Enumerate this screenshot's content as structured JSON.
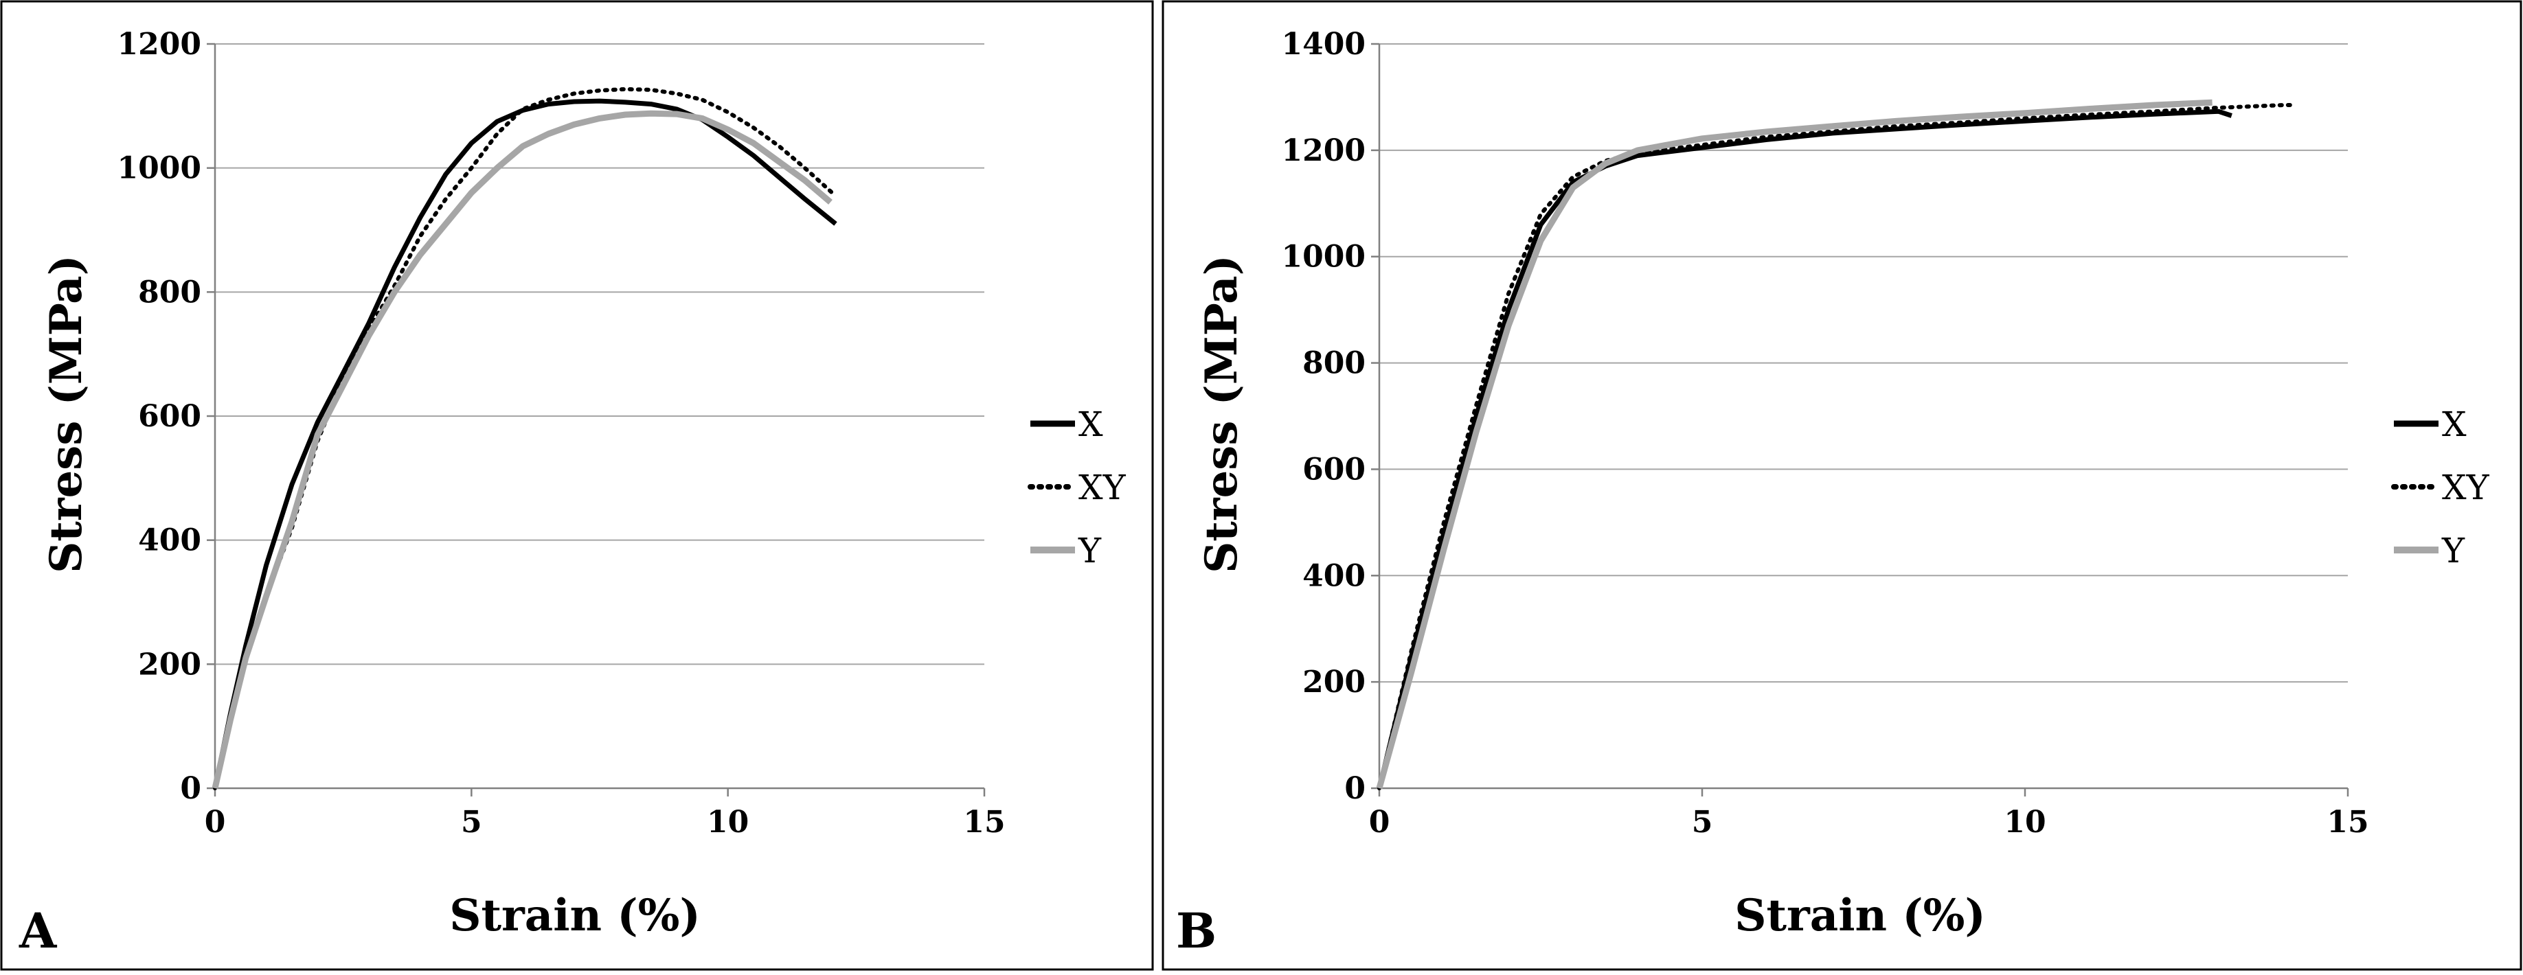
{
  "chart_data": [
    {
      "type": "line",
      "panel_label": "A",
      "title": "",
      "xlabel": "Strain (%)",
      "ylabel": "Stress (MPa)",
      "xlim": [
        0,
        15
      ],
      "ylim": [
        0,
        1200
      ],
      "xticks": [
        0,
        5,
        10,
        15
      ],
      "yticks": [
        0,
        200,
        400,
        600,
        800,
        1000,
        1200
      ],
      "grid": "horizontal",
      "legend_position": "right",
      "series": [
        {
          "name": "X",
          "style": "solid",
          "color": "#000000",
          "x": [
            0,
            0.3,
            0.6,
            1.0,
            1.5,
            2.0,
            2.5,
            3.0,
            3.5,
            4.0,
            4.5,
            5.0,
            5.5,
            6.0,
            6.5,
            7.0,
            7.5,
            8.0,
            8.5,
            9.0,
            9.5,
            10.0,
            10.5,
            11.0,
            11.5,
            12.1
          ],
          "y": [
            0,
            120,
            230,
            360,
            490,
            590,
            670,
            750,
            840,
            920,
            990,
            1040,
            1075,
            1093,
            1103,
            1107,
            1108,
            1106,
            1103,
            1095,
            1078,
            1050,
            1020,
            985,
            950,
            910
          ]
        },
        {
          "name": "XY",
          "style": "dotted",
          "color": "#000000",
          "x": [
            0,
            0.3,
            0.6,
            1.0,
            1.5,
            2.0,
            2.5,
            3.0,
            3.5,
            4.0,
            4.5,
            5.0,
            5.5,
            6.0,
            6.5,
            7.0,
            7.5,
            8.0,
            8.5,
            9.0,
            9.5,
            10.0,
            10.5,
            11.0,
            11.5,
            12.1
          ],
          "y": [
            0,
            110,
            210,
            310,
            420,
            560,
            660,
            740,
            810,
            890,
            950,
            1000,
            1055,
            1095,
            1110,
            1120,
            1125,
            1127,
            1126,
            1120,
            1110,
            1090,
            1065,
            1035,
            1000,
            955
          ]
        },
        {
          "name": "Y",
          "style": "solid",
          "color": "#a6a6a6",
          "x": [
            0,
            0.3,
            0.6,
            1.0,
            1.5,
            2.0,
            2.5,
            3.0,
            3.5,
            4.0,
            4.5,
            5.0,
            5.5,
            6.0,
            6.5,
            7.0,
            7.5,
            8.0,
            8.5,
            9.0,
            9.5,
            10.0,
            10.5,
            11.0,
            11.5,
            12.0
          ],
          "y": [
            0,
            110,
            210,
            310,
            430,
            570,
            650,
            730,
            800,
            860,
            910,
            960,
            1000,
            1035,
            1055,
            1070,
            1080,
            1086,
            1088,
            1087,
            1080,
            1062,
            1040,
            1010,
            980,
            945
          ]
        }
      ]
    },
    {
      "type": "line",
      "panel_label": "B",
      "title": "",
      "xlabel": "Strain (%)",
      "ylabel": "Stress (MPa)",
      "xlim": [
        0,
        15
      ],
      "ylim": [
        0,
        1400
      ],
      "xticks": [
        0,
        5,
        10,
        15
      ],
      "yticks": [
        0,
        200,
        400,
        600,
        800,
        1000,
        1200,
        1400
      ],
      "grid": "horizontal",
      "legend_position": "right",
      "series": [
        {
          "name": "X",
          "style": "solid",
          "color": "#000000",
          "x": [
            0,
            0.5,
            1.0,
            1.5,
            2.0,
            2.5,
            3.0,
            3.5,
            4.0,
            5.0,
            6.0,
            7.0,
            8.0,
            9.0,
            10.0,
            11.0,
            12.0,
            13.0,
            13.2
          ],
          "y": [
            0,
            250,
            480,
            700,
            900,
            1060,
            1140,
            1170,
            1190,
            1205,
            1220,
            1232,
            1240,
            1248,
            1255,
            1262,
            1268,
            1273,
            1265
          ]
        },
        {
          "name": "XY",
          "style": "dotted",
          "color": "#000000",
          "x": [
            0,
            0.5,
            1.0,
            1.5,
            2.0,
            2.5,
            3.0,
            3.5,
            4.0,
            5.0,
            6.0,
            7.0,
            8.0,
            9.0,
            10.0,
            11.0,
            12.0,
            13.0,
            14.0,
            14.2
          ],
          "y": [
            0,
            260,
            500,
            720,
            930,
            1080,
            1150,
            1180,
            1195,
            1210,
            1225,
            1235,
            1245,
            1252,
            1260,
            1267,
            1273,
            1280,
            1285,
            1285
          ]
        },
        {
          "name": "Y",
          "style": "solid",
          "color": "#a6a6a6",
          "x": [
            0,
            0.5,
            1.0,
            1.5,
            2.0,
            2.5,
            3.0,
            3.5,
            4.0,
            5.0,
            6.0,
            7.0,
            8.0,
            9.0,
            10.0,
            11.0,
            12.0,
            12.9
          ],
          "y": [
            0,
            220,
            450,
            670,
            870,
            1030,
            1130,
            1175,
            1200,
            1222,
            1235,
            1245,
            1255,
            1263,
            1270,
            1278,
            1285,
            1290
          ]
        }
      ]
    }
  ]
}
